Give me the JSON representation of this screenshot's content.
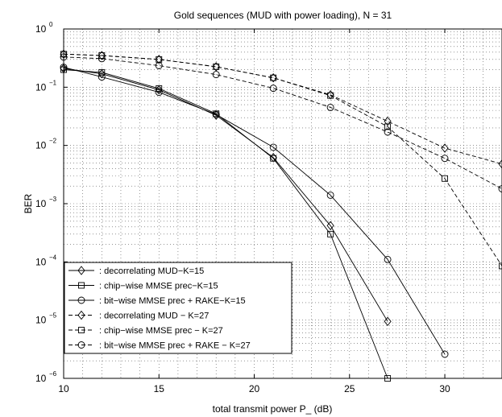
{
  "chart_data": {
    "type": "line",
    "title": "Gold sequences (MUD with power loading), N = 31",
    "xlabel": "total transmit power  P_  (dB)",
    "ylabel": "BER",
    "xlim": [
      10,
      33
    ],
    "ylim": [
      1e-06,
      1
    ],
    "yscale": "log",
    "xticks": [
      10,
      15,
      20,
      25,
      30
    ],
    "ytick_exponents": [
      0,
      -1,
      -2,
      -3,
      -4,
      -5,
      -6
    ],
    "grid": true,
    "legend_position": "bottom-left",
    "series": [
      {
        "name": ": decorrelating MUD−K=15",
        "marker": "diamond",
        "linestyle": "solid",
        "x": [
          10,
          12,
          15,
          18,
          21,
          24,
          27
        ],
        "y": [
          0.21,
          0.17,
          0.09,
          0.033,
          0.0062,
          0.00042,
          9.5e-06
        ]
      },
      {
        "name": ": chip−wise MMSE prec−K=15",
        "marker": "square",
        "linestyle": "solid",
        "x": [
          10,
          12,
          15,
          18,
          21,
          24,
          27
        ],
        "y": [
          0.2,
          0.18,
          0.095,
          0.035,
          0.006,
          0.0003,
          1e-06
        ]
      },
      {
        "name": ": bit−wise MMSE prec + RAKE−K=15",
        "marker": "circle",
        "linestyle": "solid",
        "x": [
          10,
          12,
          15,
          18,
          21,
          24,
          27,
          30
        ],
        "y": [
          0.22,
          0.15,
          0.082,
          0.034,
          0.0093,
          0.0014,
          0.00011,
          2.6e-06
        ]
      },
      {
        "name": ": decorrelating MUD − K=27",
        "marker": "diamond",
        "linestyle": "dashed",
        "x": [
          10,
          12,
          15,
          18,
          21,
          24,
          27,
          30,
          33
        ],
        "y": [
          0.37,
          0.35,
          0.3,
          0.225,
          0.145,
          0.074,
          0.026,
          0.009,
          0.0048
        ]
      },
      {
        "name": ": chip−wise MMSE prec − K=27",
        "marker": "square",
        "linestyle": "dashed",
        "x": [
          10,
          12,
          15,
          18,
          21,
          24,
          27,
          30,
          33
        ],
        "y": [
          0.37,
          0.35,
          0.3,
          0.225,
          0.145,
          0.072,
          0.021,
          0.0027,
          8.5e-05
        ]
      },
      {
        "name": ": bit−wise MMSE prec + RAKE − K=27",
        "marker": "circle",
        "linestyle": "dashed",
        "x": [
          10,
          12,
          15,
          18,
          21,
          24,
          27,
          30,
          33
        ],
        "y": [
          0.33,
          0.31,
          0.235,
          0.165,
          0.096,
          0.045,
          0.017,
          0.006,
          0.0018
        ]
      }
    ]
  }
}
